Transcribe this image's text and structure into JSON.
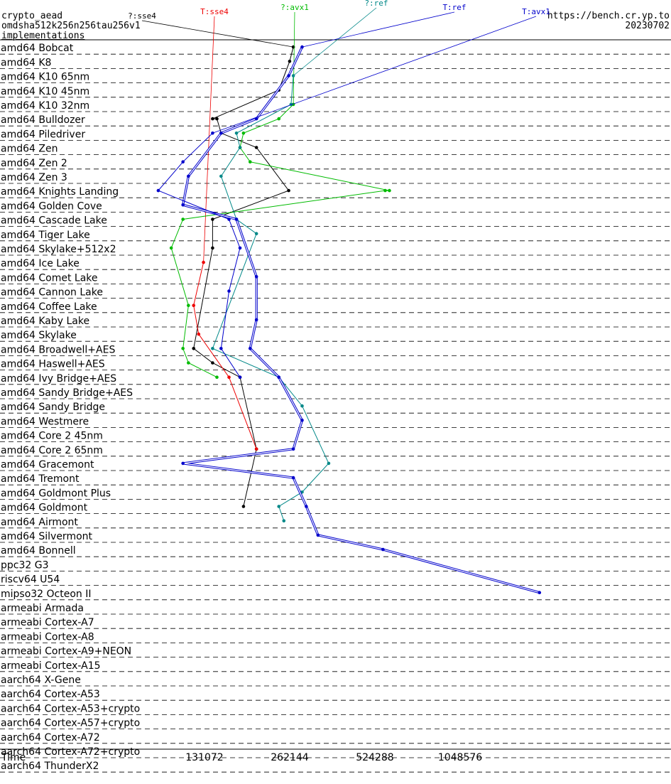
{
  "header": {
    "primitive": "crypto_aead",
    "operation": "omdsha512k256n256tau256v1",
    "implementations_link": "implementations",
    "site": "https://bench.cr.yp.to",
    "date": "20230702"
  },
  "chart_data": {
    "type": "line",
    "xlabel": "Time",
    "x_scale": "log2",
    "x_ticks": [
      131072,
      262144,
      524288,
      1048576
    ],
    "grid": false,
    "categories": [
      "amd64 Bobcat",
      "amd64 K8",
      "amd64 K10 65nm",
      "amd64 K10 45nm",
      "amd64 K10 32nm",
      "amd64 Bulldozer",
      "amd64 Piledriver",
      "amd64 Zen",
      "amd64 Zen 2",
      "amd64 Zen 3",
      "amd64 Knights Landing",
      "amd64 Golden Cove",
      "amd64 Cascade Lake",
      "amd64 Tiger Lake",
      "amd64 Skylake+512x2",
      "amd64 Ice Lake",
      "amd64 Comet Lake",
      "amd64 Cannon Lake",
      "amd64 Coffee Lake",
      "amd64 Kaby Lake",
      "amd64 Skylake",
      "amd64 Broadwell+AES",
      "amd64 Haswell+AES",
      "amd64 Ivy Bridge+AES",
      "amd64 Sandy Bridge+AES",
      "amd64 Sandy Bridge",
      "amd64 Westmere",
      "amd64 Core 2 45nm",
      "amd64 Core 2 65nm",
      "amd64 Gracemont",
      "amd64 Tremont",
      "amd64 Goldmont Plus",
      "amd64 Goldmont",
      "amd64 Airmont",
      "amd64 Silvermont",
      "amd64 Bonnell",
      "ppc32 G3",
      "riscv64 U54",
      "mipso32 Octeon II",
      "armeabi Armada",
      "armeabi Cortex-A7",
      "armeabi Cortex-A8",
      "armeabi Cortex-A9+NEON",
      "armeabi Cortex-A15",
      "aarch64 X-Gene",
      "aarch64 Cortex-A53",
      "aarch64 Cortex-A53+crypto",
      "aarch64 Cortex-A57+crypto",
      "aarch64 Cortex-A72",
      "aarch64 Cortex-A72+crypto",
      "aarch64 ThunderX2"
    ],
    "series": [
      {
        "name": "?:sse4",
        "color": "#000000",
        "double": false,
        "points": [
          [
            0,
            270000
          ],
          [
            1,
            262000
          ],
          [
            3,
            240000
          ],
          [
            5,
            140000
          ],
          [
            5,
            145000
          ],
          [
            6,
            150000
          ],
          [
            7,
            200000
          ],
          [
            10,
            260000
          ],
          [
            12,
            140000
          ],
          [
            14,
            140000
          ],
          [
            21,
            120000
          ],
          [
            22,
            140000
          ],
          [
            23,
            175000
          ],
          [
            28,
            200000
          ],
          [
            32,
            180000
          ]
        ]
      },
      {
        "name": "T:sse4",
        "color": "#ee0000",
        "double": false,
        "points": [
          [
            15,
            130000
          ],
          [
            18,
            120000
          ],
          [
            20,
            125000
          ],
          [
            23,
            160000
          ],
          [
            28,
            200000
          ]
        ]
      },
      {
        "name": "?:avx1",
        "color": "#00bb00",
        "double": false,
        "points": [
          [
            4,
            270000
          ],
          [
            5,
            240000
          ],
          [
            6,
            180000
          ],
          [
            7,
            175000
          ],
          [
            8,
            190000
          ],
          [
            10,
            590000
          ],
          [
            10,
            570000
          ],
          [
            12,
            110000
          ],
          [
            14,
            100000
          ],
          [
            18,
            115000
          ],
          [
            21,
            110000
          ],
          [
            22,
            115000
          ],
          [
            23,
            145000
          ]
        ]
      },
      {
        "name": "?:ref",
        "color": "#008888",
        "double": false,
        "points": [
          [
            2,
            270000
          ],
          [
            4,
            265000
          ],
          [
            6,
            170000
          ],
          [
            7,
            175000
          ],
          [
            9,
            150000
          ],
          [
            12,
            170000
          ],
          [
            13,
            200000
          ],
          [
            21,
            140000
          ],
          [
            23,
            240000
          ],
          [
            25,
            290000
          ],
          [
            29,
            360000
          ],
          [
            31,
            290000
          ],
          [
            32,
            240000
          ],
          [
            33,
            250000
          ]
        ]
      },
      {
        "name": "T:ref",
        "color": "#0000cc",
        "double": true,
        "points": [
          [
            0,
            290000
          ],
          [
            2,
            260000
          ],
          [
            5,
            200000
          ],
          [
            6,
            150000
          ],
          [
            9,
            115000
          ],
          [
            11,
            110000
          ],
          [
            12,
            170000
          ],
          [
            16,
            200000
          ],
          [
            19,
            200000
          ],
          [
            21,
            190000
          ],
          [
            23,
            240000
          ],
          [
            26,
            290000
          ],
          [
            28,
            270000
          ],
          [
            29,
            110000
          ],
          [
            30,
            270000
          ],
          [
            32,
            300000
          ],
          [
            34,
            330000
          ],
          [
            35,
            560000
          ],
          [
            38,
            2000000
          ]
        ]
      },
      {
        "name": "T:avx1",
        "color": "#0000cc",
        "double": false,
        "points": [
          [
            6,
            140000
          ],
          [
            8,
            110000
          ],
          [
            10,
            90000
          ],
          [
            12,
            160000
          ],
          [
            14,
            175000
          ],
          [
            17,
            160000
          ],
          [
            21,
            150000
          ],
          [
            23,
            175000
          ]
        ]
      }
    ]
  }
}
